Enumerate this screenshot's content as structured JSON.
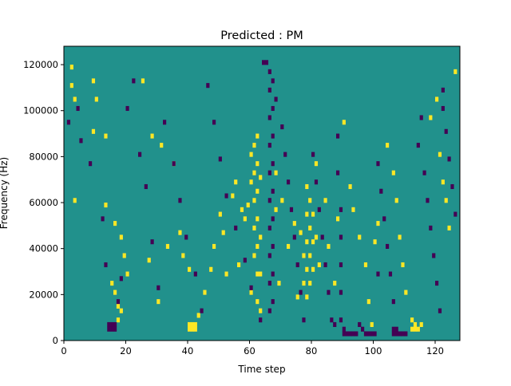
{
  "chart_data": {
    "type": "heatmap",
    "title": "Predicted : PM",
    "xlabel": "Time step",
    "ylabel": "Frequency (Hz)",
    "xlim": [
      0,
      128
    ],
    "ylim": [
      0,
      128000
    ],
    "x_ticks": [
      0,
      20,
      40,
      60,
      80,
      100,
      120
    ],
    "y_ticks": [
      0,
      20000,
      40000,
      60000,
      80000,
      100000,
      120000
    ],
    "grid": false,
    "legend": "none",
    "colors": {
      "background": "#21918c",
      "high": "#fde725",
      "low": "#440154"
    },
    "n_time_steps": 128,
    "n_freq_bins": 64,
    "freq_bin_width_hz": 2000,
    "high_cells": [
      [
        2,
        59
      ],
      [
        2,
        55
      ],
      [
        3,
        52
      ],
      [
        3,
        30
      ],
      [
        9,
        56
      ],
      [
        9,
        45
      ],
      [
        10,
        52
      ],
      [
        13,
        44
      ],
      [
        13,
        29
      ],
      [
        15,
        12
      ],
      [
        16,
        10
      ],
      [
        16,
        25
      ],
      [
        17,
        7
      ],
      [
        17,
        4
      ],
      [
        18,
        6
      ],
      [
        18,
        22
      ],
      [
        19,
        18
      ],
      [
        20,
        14
      ],
      [
        25,
        56
      ],
      [
        27,
        17
      ],
      [
        28,
        44
      ],
      [
        30,
        8
      ],
      [
        31,
        42
      ],
      [
        33,
        20
      ],
      [
        35,
        38
      ],
      [
        37,
        23
      ],
      [
        38,
        18
      ],
      [
        40,
        15
      ],
      [
        40,
        3
      ],
      [
        40,
        2
      ],
      [
        41,
        3
      ],
      [
        41,
        2
      ],
      [
        42,
        3
      ],
      [
        42,
        2
      ],
      [
        43,
        5
      ],
      [
        45,
        10
      ],
      [
        47,
        15
      ],
      [
        48,
        20
      ],
      [
        50,
        27
      ],
      [
        51,
        23
      ],
      [
        52,
        14
      ],
      [
        54,
        31
      ],
      [
        55,
        34
      ],
      [
        56,
        16
      ],
      [
        57,
        28
      ],
      [
        58,
        26
      ],
      [
        59,
        29
      ],
      [
        60,
        34
      ],
      [
        60,
        40
      ],
      [
        60,
        10
      ],
      [
        61,
        42
      ],
      [
        61,
        36
      ],
      [
        61,
        30
      ],
      [
        61,
        24
      ],
      [
        61,
        18
      ],
      [
        62,
        44
      ],
      [
        62,
        38
      ],
      [
        62,
        32
      ],
      [
        62,
        26
      ],
      [
        62,
        20
      ],
      [
        62,
        14
      ],
      [
        62,
        8
      ],
      [
        63,
        35
      ],
      [
        63,
        22
      ],
      [
        63,
        14
      ],
      [
        63,
        6
      ],
      [
        68,
        36
      ],
      [
        68,
        28
      ],
      [
        69,
        12
      ],
      [
        70,
        30
      ],
      [
        72,
        20
      ],
      [
        74,
        25
      ],
      [
        75,
        9
      ],
      [
        76,
        23
      ],
      [
        77,
        18
      ],
      [
        77,
        12
      ],
      [
        78,
        33
      ],
      [
        78,
        27
      ],
      [
        78,
        21
      ],
      [
        78,
        15
      ],
      [
        78,
        9
      ],
      [
        79,
        30
      ],
      [
        79,
        24
      ],
      [
        79,
        18
      ],
      [
        79,
        12
      ],
      [
        80,
        27
      ],
      [
        80,
        21
      ],
      [
        80,
        15
      ],
      [
        81,
        38
      ],
      [
        81,
        22
      ],
      [
        82,
        16
      ],
      [
        84,
        30
      ],
      [
        85,
        20
      ],
      [
        87,
        12
      ],
      [
        88,
        26
      ],
      [
        90,
        47
      ],
      [
        92,
        33
      ],
      [
        93,
        28
      ],
      [
        95,
        22
      ],
      [
        97,
        16
      ],
      [
        98,
        8
      ],
      [
        99,
        3
      ],
      [
        100,
        21
      ],
      [
        101,
        25
      ],
      [
        104,
        42
      ],
      [
        106,
        36
      ],
      [
        107,
        30
      ],
      [
        108,
        22
      ],
      [
        109,
        16
      ],
      [
        110,
        10
      ],
      [
        112,
        4
      ],
      [
        112,
        2
      ],
      [
        113,
        3
      ],
      [
        113,
        2
      ],
      [
        114,
        2
      ],
      [
        115,
        3
      ],
      [
        118,
        48
      ],
      [
        120,
        52
      ],
      [
        121,
        40
      ],
      [
        122,
        34
      ],
      [
        123,
        30
      ],
      [
        124,
        24
      ],
      [
        126,
        58
      ]
    ],
    "low_cells": [
      [
        1,
        47
      ],
      [
        4,
        50
      ],
      [
        5,
        43
      ],
      [
        8,
        38
      ],
      [
        12,
        26
      ],
      [
        13,
        16
      ],
      [
        14,
        3
      ],
      [
        14,
        2
      ],
      [
        15,
        3
      ],
      [
        15,
        2
      ],
      [
        16,
        3
      ],
      [
        16,
        2
      ],
      [
        17,
        8
      ],
      [
        18,
        13
      ],
      [
        20,
        50
      ],
      [
        22,
        56
      ],
      [
        24,
        40
      ],
      [
        26,
        33
      ],
      [
        28,
        21
      ],
      [
        30,
        11
      ],
      [
        32,
        47
      ],
      [
        35,
        38
      ],
      [
        37,
        30
      ],
      [
        39,
        22
      ],
      [
        42,
        14
      ],
      [
        44,
        6
      ],
      [
        46,
        55
      ],
      [
        48,
        47
      ],
      [
        50,
        39
      ],
      [
        52,
        31
      ],
      [
        55,
        24
      ],
      [
        58,
        17
      ],
      [
        60,
        11
      ],
      [
        63,
        4
      ],
      [
        64,
        60
      ],
      [
        65,
        60
      ],
      [
        66,
        58
      ],
      [
        66,
        54
      ],
      [
        66,
        48
      ],
      [
        66,
        42
      ],
      [
        66,
        36
      ],
      [
        66,
        30
      ],
      [
        66,
        24
      ],
      [
        66,
        18
      ],
      [
        66,
        12
      ],
      [
        66,
        6
      ],
      [
        67,
        56
      ],
      [
        67,
        50
      ],
      [
        67,
        44
      ],
      [
        67,
        38
      ],
      [
        67,
        32
      ],
      [
        67,
        26
      ],
      [
        67,
        20
      ],
      [
        67,
        14
      ],
      [
        67,
        8
      ],
      [
        68,
        52
      ],
      [
        70,
        46
      ],
      [
        71,
        40
      ],
      [
        72,
        34
      ],
      [
        73,
        28
      ],
      [
        74,
        22
      ],
      [
        75,
        16
      ],
      [
        76,
        10
      ],
      [
        77,
        4
      ],
      [
        80,
        40
      ],
      [
        81,
        34
      ],
      [
        82,
        28
      ],
      [
        83,
        22
      ],
      [
        84,
        16
      ],
      [
        85,
        10
      ],
      [
        86,
        4
      ],
      [
        87,
        3
      ],
      [
        88,
        44
      ],
      [
        88,
        36
      ],
      [
        89,
        28
      ],
      [
        89,
        22
      ],
      [
        89,
        16
      ],
      [
        89,
        10
      ],
      [
        89,
        4
      ],
      [
        90,
        2
      ],
      [
        90,
        1
      ],
      [
        91,
        1
      ],
      [
        92,
        1
      ],
      [
        93,
        1
      ],
      [
        94,
        1
      ],
      [
        95,
        3
      ],
      [
        96,
        2
      ],
      [
        97,
        1
      ],
      [
        98,
        1
      ],
      [
        99,
        1
      ],
      [
        100,
        1
      ],
      [
        101,
        38
      ],
      [
        101,
        14
      ],
      [
        102,
        32
      ],
      [
        103,
        26
      ],
      [
        104,
        20
      ],
      [
        105,
        14
      ],
      [
        106,
        8
      ],
      [
        106,
        2
      ],
      [
        106,
        1
      ],
      [
        107,
        2
      ],
      [
        107,
        1
      ],
      [
        108,
        1
      ],
      [
        109,
        1
      ],
      [
        110,
        1
      ],
      [
        114,
        42
      ],
      [
        115,
        48
      ],
      [
        116,
        36
      ],
      [
        117,
        30
      ],
      [
        118,
        24
      ],
      [
        119,
        18
      ],
      [
        120,
        12
      ],
      [
        121,
        6
      ],
      [
        122,
        54
      ],
      [
        122,
        50
      ],
      [
        123,
        45
      ],
      [
        124,
        39
      ],
      [
        125,
        33
      ],
      [
        126,
        27
      ]
    ]
  }
}
